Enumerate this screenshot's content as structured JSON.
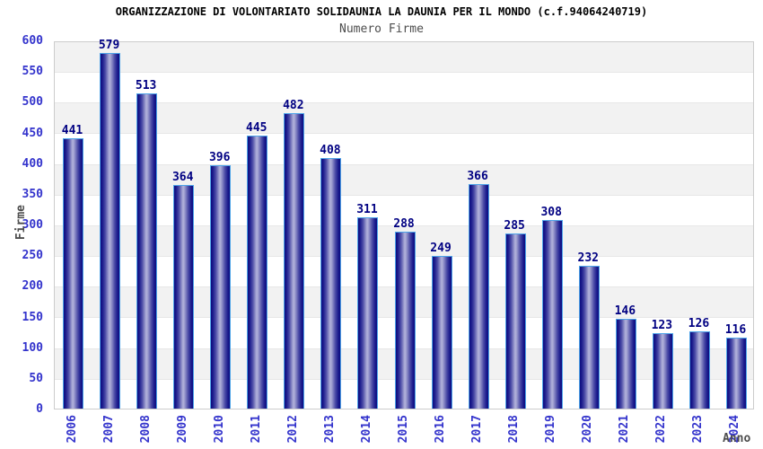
{
  "header": {
    "title": "ORGANIZZAZIONE DI VOLONTARIATO SOLIDAUNIA LA DAUNIA PER IL MONDO (c.f.94064240719)",
    "subtitle": "Numero Firme"
  },
  "chart_data": {
    "type": "bar",
    "title": "Numero Firme",
    "categories": [
      "2006",
      "2007",
      "2008",
      "2009",
      "2010",
      "2011",
      "2012",
      "2013",
      "2014",
      "2015",
      "2016",
      "2017",
      "2018",
      "2019",
      "2020",
      "2021",
      "2022",
      "2023",
      "2024"
    ],
    "values": [
      441,
      579,
      513,
      364,
      396,
      445,
      482,
      408,
      311,
      288,
      249,
      366,
      285,
      308,
      232,
      146,
      123,
      126,
      116
    ],
    "xlabel": "Anno",
    "ylabel": "Firme",
    "ylim": [
      0,
      600
    ],
    "ytick_step": 50,
    "grid": "horizontal-bands-alternating",
    "legend_position": "none",
    "value_labels": "above-bars"
  },
  "colors": {
    "bar_border": "#4da3e8",
    "bar_gradient_dark": "#0c0c80",
    "bar_gradient_light": "#b3b3dc",
    "tick_label": "#3333cc",
    "value_label": "#000082",
    "axis_title": "#4d4d4d",
    "band_gray": "#f2f2f2",
    "band_white": "#ffffff",
    "plot_border": "#cccccc",
    "title_text": "#000000",
    "subtitle_text": "#4d4d4d"
  }
}
